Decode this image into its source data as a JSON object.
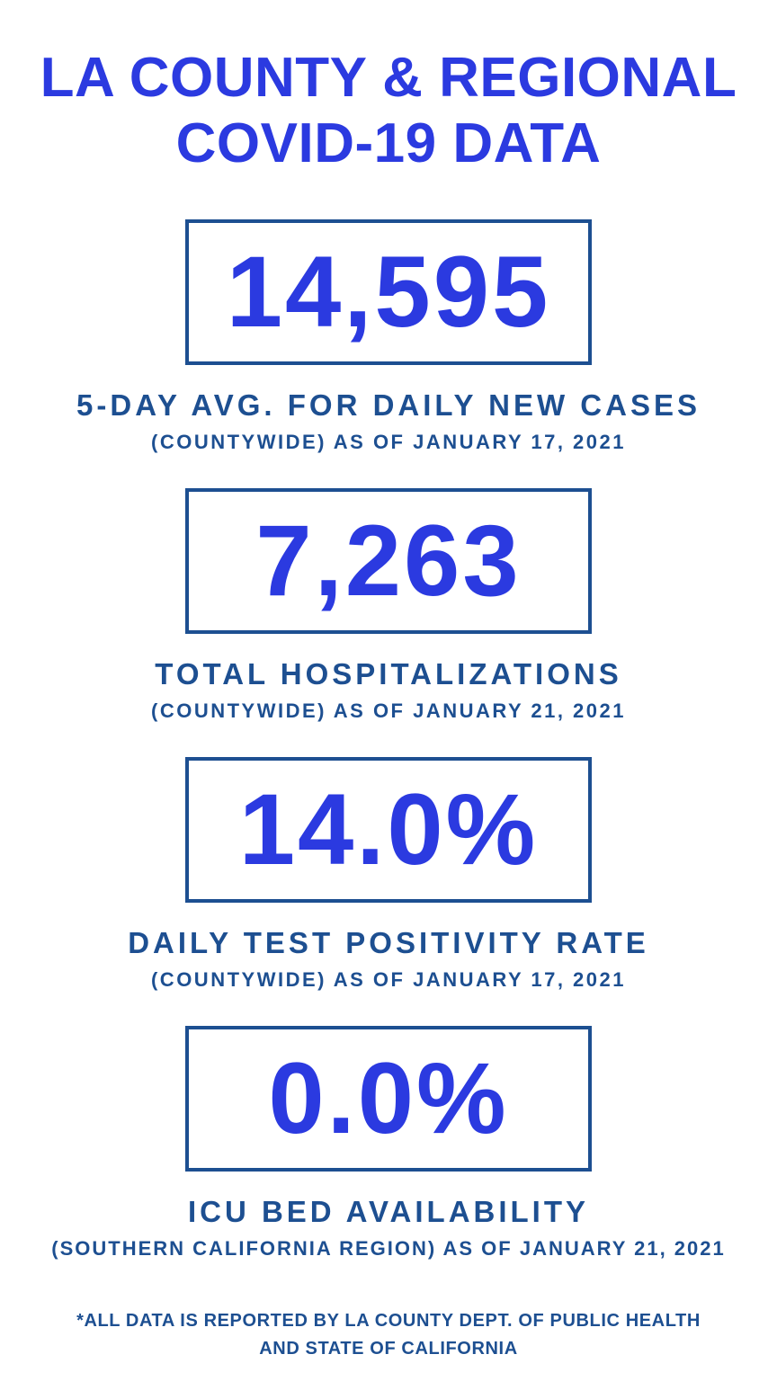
{
  "colors": {
    "accent_blue": "#2B3AE0",
    "navy": "#1D4F91",
    "background": "#FFFFFF"
  },
  "page": {
    "title_line1": "LA COUNTY & REGIONAL",
    "title_line2": "COVID-19 DATA",
    "footer_line1": "*ALL DATA IS REPORTED BY LA COUNTY DEPT. OF PUBLIC HEALTH",
    "footer_line2": "AND STATE OF CALIFORNIA"
  },
  "stats": [
    {
      "value": "14,595",
      "label": "5-DAY AVG. FOR DAILY NEW CASES",
      "sublabel": "(COUNTYWIDE) AS OF JANUARY 17, 2021"
    },
    {
      "value": "7,263",
      "label": "TOTAL HOSPITALIZATIONS",
      "sublabel": "(COUNTYWIDE) AS OF JANUARY 21, 2021"
    },
    {
      "value": "14.0%",
      "label": "DAILY TEST POSITIVITY RATE",
      "sublabel": "(COUNTYWIDE) AS OF JANUARY 17, 2021"
    },
    {
      "value": "0.0%",
      "label": "ICU BED AVAILABILITY",
      "sublabel": "(SOUTHERN CALIFORNIA REGION) AS OF JANUARY 21, 2021"
    }
  ],
  "chart_data": {
    "type": "table",
    "title": "LA COUNTY & REGIONAL COVID-19 DATA",
    "columns": [
      "metric",
      "value",
      "scope_as_of"
    ],
    "rows": [
      [
        "5-DAY AVG. FOR DAILY NEW CASES",
        "14,595",
        "(COUNTYWIDE) AS OF JANUARY 17, 2021"
      ],
      [
        "TOTAL HOSPITALIZATIONS",
        "7,263",
        "(COUNTYWIDE) AS OF JANUARY 21, 2021"
      ],
      [
        "DAILY TEST POSITIVITY RATE",
        "14.0%",
        "(COUNTYWIDE) AS OF JANUARY 17, 2021"
      ],
      [
        "ICU BED AVAILABILITY",
        "0.0%",
        "(SOUTHERN CALIFORNIA REGION) AS OF JANUARY 21, 2021"
      ]
    ],
    "footnote": "*ALL DATA IS REPORTED BY LA COUNTY DEPT. OF PUBLIC HEALTH AND STATE OF CALIFORNIA"
  }
}
